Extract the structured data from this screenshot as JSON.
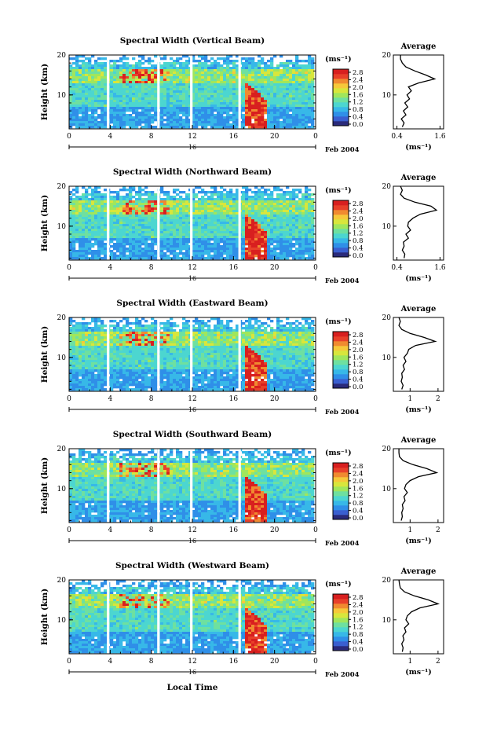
{
  "figure": {
    "xlabel": "Local Time",
    "date_text": "Feb 2004",
    "day_label": "16",
    "colorbar_unit": "(ms⁻¹)",
    "avg_title": "Average",
    "avg_xlabel": "(ms⁻¹)",
    "ylabel": "Height (km)",
    "colormap": [
      "#2a2a7a",
      "#3a5fd0",
      "#2f8fe8",
      "#37b8e8",
      "#4cd6d0",
      "#6ee0a0",
      "#a0e65c",
      "#d8e63c",
      "#f6c83a",
      "#f08a30",
      "#e8402a",
      "#d81f1f"
    ]
  },
  "chart_data": [
    {
      "type": "heatmap",
      "title": "Spectral Width (Vertical Beam)",
      "x_ticks": [
        "0",
        "4",
        "8",
        "12",
        "16",
        "20",
        "0"
      ],
      "y_ticks": [
        "20",
        "10"
      ],
      "xlim": [
        0,
        24
      ],
      "ylim": [
        1.5,
        20
      ],
      "colorbar_ticks": [
        "2.8",
        "2.4",
        "2.0",
        "1.6",
        "1.2",
        "0.8",
        "0.4",
        "0.0"
      ],
      "data_gaps_hours": [
        3.8,
        8.7,
        11.9,
        16.6
      ],
      "avg_x_ticks": [
        "0.4",
        "1.6"
      ],
      "avg_y_ticks": [
        "20",
        "10"
      ],
      "avg_xlim": [
        0.3,
        1.7
      ],
      "average_profile": {
        "height_km": [
          2,
          3,
          4,
          5,
          6,
          7,
          8,
          9,
          10,
          11,
          12,
          13,
          14,
          15,
          16,
          17,
          18,
          19,
          20
        ],
        "value": [
          0.55,
          0.6,
          0.52,
          0.65,
          0.58,
          0.7,
          0.62,
          0.75,
          0.68,
          0.8,
          0.72,
          1.0,
          1.45,
          1.2,
          0.9,
          0.65,
          0.55,
          0.5,
          0.5
        ]
      }
    },
    {
      "type": "heatmap",
      "title": "Spectral Width (Northward Beam)",
      "x_ticks": [
        "0",
        "4",
        "8",
        "12",
        "16",
        "20",
        "0"
      ],
      "y_ticks": [
        "20",
        "10"
      ],
      "xlim": [
        0,
        24
      ],
      "ylim": [
        1.5,
        20
      ],
      "colorbar_ticks": [
        "2.8",
        "2.4",
        "2.0",
        "1.6",
        "1.2",
        "0.8",
        "0.4",
        "0.0"
      ],
      "data_gaps_hours": [
        3.8,
        8.7,
        11.9,
        16.6
      ],
      "avg_x_ticks": [
        "0.4",
        "1.6"
      ],
      "avg_y_ticks": [
        "20",
        "10"
      ],
      "avg_xlim": [
        0.3,
        1.7
      ],
      "average_profile": {
        "height_km": [
          2,
          3,
          4,
          5,
          6,
          7,
          8,
          9,
          10,
          11,
          12,
          13,
          14,
          15,
          16,
          17,
          18,
          19,
          20
        ],
        "value": [
          0.6,
          0.62,
          0.55,
          0.6,
          0.58,
          0.72,
          0.65,
          0.78,
          0.7,
          0.72,
          0.85,
          1.05,
          1.5,
          1.35,
          0.9,
          0.6,
          0.5,
          0.55,
          0.5
        ]
      }
    },
    {
      "type": "heatmap",
      "title": "Spectral Width (Eastward Beam)",
      "x_ticks": [
        "0",
        "4",
        "8",
        "12",
        "16",
        "20",
        "0"
      ],
      "y_ticks": [
        "20",
        "10"
      ],
      "xlim": [
        0,
        24
      ],
      "ylim": [
        1.5,
        20
      ],
      "colorbar_ticks": [
        "2.8",
        "2.4",
        "2.0",
        "1.6",
        "1.2",
        "0.8",
        "0.4",
        "0.0"
      ],
      "data_gaps_hours": [
        3.8,
        8.7,
        11.9,
        16.6
      ],
      "avg_x_ticks": [
        "1",
        "2"
      ],
      "avg_y_ticks": [
        "20",
        "10"
      ],
      "avg_xlim": [
        0.4,
        2.2
      ],
      "average_profile": {
        "height_km": [
          2,
          3,
          4,
          5,
          6,
          7,
          8,
          9,
          10,
          11,
          12,
          13,
          14,
          15,
          16,
          17,
          18,
          19,
          20
        ],
        "value": [
          0.7,
          0.75,
          0.68,
          0.72,
          0.7,
          0.8,
          0.75,
          0.85,
          0.78,
          0.9,
          0.95,
          1.2,
          1.9,
          1.5,
          1.0,
          0.7,
          0.6,
          0.65,
          0.6
        ]
      }
    },
    {
      "type": "heatmap",
      "title": "Spectral Width (Southward Beam)",
      "x_ticks": [
        "0",
        "4",
        "8",
        "12",
        "16",
        "20",
        "0"
      ],
      "y_ticks": [
        "20",
        "10"
      ],
      "xlim": [
        0,
        24
      ],
      "ylim": [
        1.5,
        20
      ],
      "colorbar_ticks": [
        "2.8",
        "2.4",
        "2.0",
        "1.6",
        "1.2",
        "0.8",
        "0.4",
        "0.0"
      ],
      "data_gaps_hours": [
        3.8,
        8.7,
        11.9,
        16.6
      ],
      "avg_x_ticks": [
        "1",
        "2"
      ],
      "avg_y_ticks": [
        "20",
        "10"
      ],
      "avg_xlim": [
        0.4,
        2.2
      ],
      "average_profile": {
        "height_km": [
          2,
          3,
          4,
          5,
          6,
          7,
          8,
          9,
          10,
          11,
          12,
          13,
          14,
          15,
          16,
          17,
          18,
          19,
          20
        ],
        "value": [
          0.68,
          0.72,
          0.7,
          0.75,
          0.72,
          0.82,
          0.78,
          0.9,
          0.8,
          0.85,
          1.0,
          1.3,
          1.95,
          1.6,
          1.1,
          0.75,
          0.62,
          0.6,
          0.6
        ]
      }
    },
    {
      "type": "heatmap",
      "title": "Spectral Width (Westward Beam)",
      "x_ticks": [
        "0",
        "4",
        "8",
        "12",
        "16",
        "20",
        "0"
      ],
      "y_ticks": [
        "20",
        "10"
      ],
      "xlim": [
        0,
        24
      ],
      "ylim": [
        1.5,
        20
      ],
      "colorbar_ticks": [
        "2.8",
        "2.4",
        "2.0",
        "1.6",
        "1.2",
        "0.8",
        "0.4",
        "0.0"
      ],
      "data_gaps_hours": [
        3.8,
        8.7,
        11.9,
        16.6
      ],
      "avg_x_ticks": [
        "1",
        "2"
      ],
      "avg_y_ticks": [
        "20",
        "10"
      ],
      "avg_xlim": [
        0.4,
        2.2
      ],
      "average_profile": {
        "height_km": [
          2,
          3,
          4,
          5,
          6,
          7,
          8,
          9,
          10,
          11,
          12,
          13,
          14,
          15,
          16,
          17,
          18,
          19,
          20
        ],
        "value": [
          0.72,
          0.75,
          0.7,
          0.78,
          0.74,
          0.85,
          0.8,
          0.95,
          0.85,
          0.9,
          1.05,
          1.35,
          2.0,
          1.65,
          1.15,
          0.8,
          0.65,
          0.62,
          0.6
        ]
      }
    }
  ]
}
